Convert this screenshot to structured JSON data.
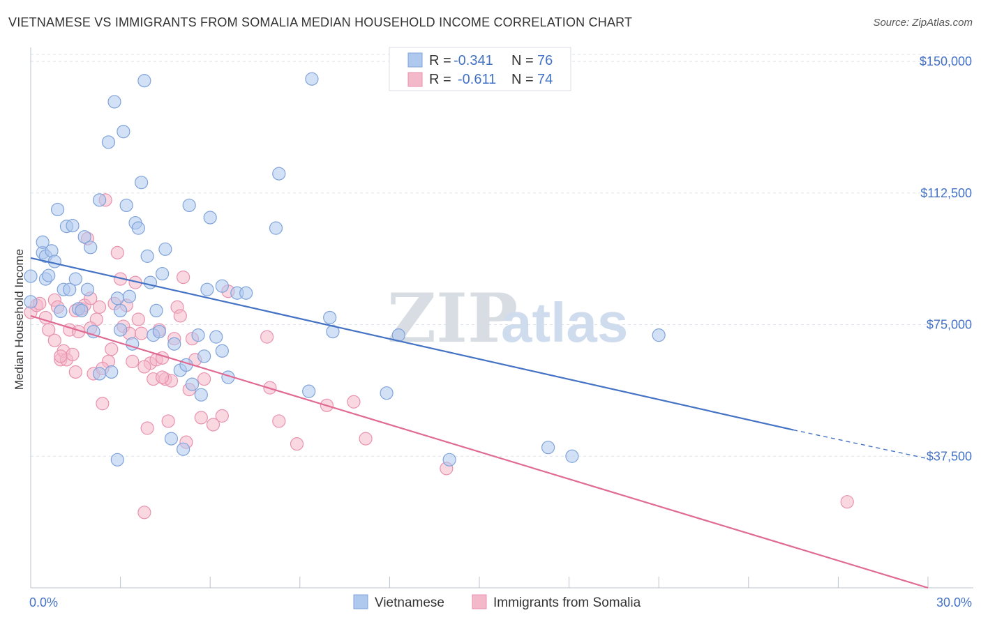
{
  "title": "VIETNAMESE VS IMMIGRANTS FROM SOMALIA MEDIAN HOUSEHOLD INCOME CORRELATION CHART",
  "source": "Source: ZipAtlas.com",
  "watermark": {
    "zip": "ZIP",
    "atlas": "atlas"
  },
  "colors": {
    "blue": "#4472c4",
    "blue_fill": "#aec8ee",
    "pink": "#e06a93",
    "pink_fill": "#f4b8cb",
    "grid": "#dde3ea"
  },
  "chart_data": {
    "type": "scatter",
    "xlim": [
      0,
      30
    ],
    "ylim": [
      0,
      152000
    ],
    "ylabel": "Median Household Income",
    "x_tick_labels": [
      {
        "value": 0,
        "label": "0.0%"
      },
      {
        "value": 30,
        "label": "30.0%"
      }
    ],
    "y_ticks": [
      {
        "value": 37500,
        "label": "$37,500"
      },
      {
        "value": 75000,
        "label": "$75,000"
      },
      {
        "value": 112500,
        "label": "$112,500"
      },
      {
        "value": 150000,
        "label": "$150,000"
      }
    ],
    "legend": {
      "rows": [
        {
          "r_label": "R =",
          "r_value": "-0.341",
          "n_label": "N =",
          "n_value": "76"
        },
        {
          "r_label": "R =",
          "r_value": "-0.611",
          "n_label": "N =",
          "n_value": "74"
        }
      ]
    },
    "series": [
      {
        "name": "Vietnamese",
        "color": "#4472c4",
        "trend": {
          "x0": 0,
          "y0": 94000,
          "x1": 25.5,
          "y1": 45000,
          "dash_to_x": 30,
          "dash_to_y": 36800
        },
        "points": [
          [
            0.0,
            88800
          ],
          [
            0.0,
            81500
          ],
          [
            0.4,
            95500
          ],
          [
            0.4,
            98500
          ],
          [
            0.5,
            94500
          ],
          [
            0.5,
            88000
          ],
          [
            0.6,
            89000
          ],
          [
            0.7,
            96000
          ],
          [
            0.8,
            93000
          ],
          [
            0.9,
            107800
          ],
          [
            1.0,
            78800
          ],
          [
            1.1,
            85000
          ],
          [
            1.2,
            103000
          ],
          [
            1.3,
            85000
          ],
          [
            1.4,
            103200
          ],
          [
            1.5,
            88000
          ],
          [
            1.6,
            79500
          ],
          [
            1.7,
            79000
          ],
          [
            1.8,
            100000
          ],
          [
            1.9,
            85000
          ],
          [
            2.0,
            97000
          ],
          [
            2.1,
            73000
          ],
          [
            2.3,
            110500
          ],
          [
            2.3,
            61000
          ],
          [
            2.6,
            127000
          ],
          [
            2.7,
            61500
          ],
          [
            2.8,
            138500
          ],
          [
            2.9,
            82500
          ],
          [
            3.0,
            79000
          ],
          [
            3.0,
            73500
          ],
          [
            3.1,
            130000
          ],
          [
            3.2,
            109000
          ],
          [
            3.3,
            83000
          ],
          [
            3.4,
            69500
          ],
          [
            3.5,
            104000
          ],
          [
            3.6,
            102500
          ],
          [
            3.7,
            115500
          ],
          [
            3.8,
            144500
          ],
          [
            3.9,
            94500
          ],
          [
            4.0,
            87000
          ],
          [
            4.1,
            72000
          ],
          [
            4.2,
            79000
          ],
          [
            4.3,
            73000
          ],
          [
            4.4,
            89500
          ],
          [
            4.5,
            96500
          ],
          [
            4.7,
            42500
          ],
          [
            4.8,
            69500
          ],
          [
            5.0,
            62000
          ],
          [
            5.1,
            39500
          ],
          [
            5.2,
            63500
          ],
          [
            5.3,
            109000
          ],
          [
            5.4,
            58000
          ],
          [
            5.6,
            72000
          ],
          [
            5.7,
            55000
          ],
          [
            5.8,
            66000
          ],
          [
            5.9,
            85000
          ],
          [
            6.0,
            105500
          ],
          [
            6.2,
            71500
          ],
          [
            6.4,
            86000
          ],
          [
            6.4,
            67500
          ],
          [
            6.6,
            60000
          ],
          [
            6.9,
            84000
          ],
          [
            7.2,
            84000
          ],
          [
            8.2,
            102500
          ],
          [
            8.3,
            118000
          ],
          [
            9.3,
            56000
          ],
          [
            9.4,
            145000
          ],
          [
            10.0,
            77000
          ],
          [
            10.1,
            73000
          ],
          [
            11.9,
            55500
          ],
          [
            12.3,
            72000
          ],
          [
            14.0,
            36500
          ],
          [
            17.3,
            40000
          ],
          [
            18.1,
            37500
          ],
          [
            21.0,
            72000
          ],
          [
            2.9,
            36500
          ]
        ]
      },
      {
        "name": "Immigrants from Somalia",
        "color": "#e06a93",
        "trend": {
          "x0": 0,
          "y0": 77500,
          "x1": 30,
          "y1": 0
        },
        "points": [
          [
            0.0,
            78500
          ],
          [
            0.2,
            80500
          ],
          [
            0.3,
            81000
          ],
          [
            0.5,
            77000
          ],
          [
            0.6,
            73500
          ],
          [
            0.8,
            70500
          ],
          [
            0.8,
            82000
          ],
          [
            0.9,
            80000
          ],
          [
            1.0,
            65000
          ],
          [
            1.1,
            67500
          ],
          [
            1.2,
            65000
          ],
          [
            1.3,
            73500
          ],
          [
            1.4,
            66500
          ],
          [
            1.5,
            61500
          ],
          [
            1.6,
            73000
          ],
          [
            1.7,
            79500
          ],
          [
            1.8,
            80500
          ],
          [
            1.9,
            99500
          ],
          [
            2.0,
            82500
          ],
          [
            2.1,
            61000
          ],
          [
            2.2,
            76500
          ],
          [
            2.3,
            80000
          ],
          [
            2.4,
            52500
          ],
          [
            2.5,
            110500
          ],
          [
            2.6,
            64500
          ],
          [
            2.7,
            68000
          ],
          [
            2.8,
            81000
          ],
          [
            2.9,
            95500
          ],
          [
            3.0,
            88000
          ],
          [
            3.1,
            74500
          ],
          [
            3.2,
            80500
          ],
          [
            3.3,
            72500
          ],
          [
            3.4,
            64500
          ],
          [
            3.5,
            87000
          ],
          [
            3.6,
            76500
          ],
          [
            3.7,
            72500
          ],
          [
            3.8,
            21500
          ],
          [
            3.9,
            45500
          ],
          [
            4.0,
            64000
          ],
          [
            4.1,
            59500
          ],
          [
            4.2,
            65000
          ],
          [
            4.3,
            73500
          ],
          [
            4.4,
            65500
          ],
          [
            4.5,
            59500
          ],
          [
            4.6,
            47500
          ],
          [
            4.7,
            59000
          ],
          [
            4.8,
            71000
          ],
          [
            4.9,
            80000
          ],
          [
            5.0,
            77500
          ],
          [
            5.1,
            88500
          ],
          [
            5.2,
            41500
          ],
          [
            5.3,
            56500
          ],
          [
            5.4,
            71000
          ],
          [
            5.5,
            65000
          ],
          [
            5.7,
            48500
          ],
          [
            5.8,
            59500
          ],
          [
            6.1,
            46500
          ],
          [
            6.4,
            49000
          ],
          [
            6.6,
            84500
          ],
          [
            7.9,
            71500
          ],
          [
            8.0,
            57000
          ],
          [
            8.3,
            47500
          ],
          [
            8.9,
            41000
          ],
          [
            9.9,
            52000
          ],
          [
            10.8,
            53000
          ],
          [
            11.2,
            42500
          ],
          [
            13.9,
            34000
          ],
          [
            27.3,
            24500
          ],
          [
            1.0,
            66000
          ],
          [
            2.4,
            62500
          ],
          [
            4.4,
            60000
          ],
          [
            3.8,
            63000
          ],
          [
            2.0,
            74000
          ],
          [
            1.5,
            79000
          ]
        ]
      }
    ]
  }
}
